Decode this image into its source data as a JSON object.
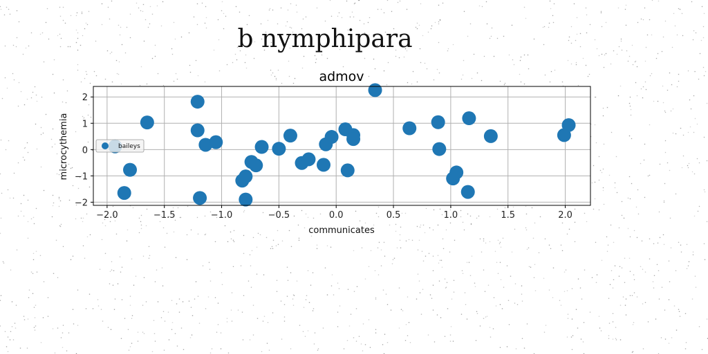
{
  "figure_title": "b nymphipara",
  "chart_data": {
    "type": "scatter",
    "title": "admov",
    "xlabel": "communicates",
    "ylabel": "microcythemia",
    "xlim": [
      -2.12,
      2.22
    ],
    "ylim": [
      -2.12,
      2.4
    ],
    "xticks": [
      -2.0,
      -1.5,
      -1.0,
      -0.5,
      0.0,
      0.5,
      1.0,
      1.5,
      2.0
    ],
    "xtick_labels": [
      "−2.0",
      "−1.5",
      "−1.0",
      "−0.5",
      "0.0",
      "0.5",
      "1.0",
      "1.5",
      "2.0"
    ],
    "yticks": [
      -2,
      -1,
      0,
      1,
      2
    ],
    "ytick_labels": [
      "−2",
      "−1",
      "0",
      "1",
      "2"
    ],
    "grid": true,
    "legend_position": "center-left",
    "color": "#1f77b4",
    "series": [
      {
        "name": "baileys",
        "points": [
          [
            -1.93,
            0.12
          ],
          [
            -1.85,
            -1.65
          ],
          [
            -1.8,
            -0.77
          ],
          [
            -1.65,
            1.03
          ],
          [
            -1.21,
            1.82
          ],
          [
            -1.21,
            0.73
          ],
          [
            -1.19,
            -1.84
          ],
          [
            -1.14,
            0.18
          ],
          [
            -1.05,
            0.28
          ],
          [
            -0.82,
            -1.18
          ],
          [
            -0.79,
            -1.02
          ],
          [
            -0.79,
            -1.9
          ],
          [
            -0.74,
            -0.47
          ],
          [
            -0.7,
            -0.6
          ],
          [
            -0.65,
            0.1
          ],
          [
            -0.5,
            0.03
          ],
          [
            -0.4,
            0.53
          ],
          [
            -0.3,
            -0.51
          ],
          [
            -0.24,
            -0.37
          ],
          [
            -0.11,
            -0.58
          ],
          [
            -0.09,
            0.2
          ],
          [
            -0.04,
            0.48
          ],
          [
            0.08,
            0.77
          ],
          [
            0.1,
            -0.79
          ],
          [
            0.15,
            0.55
          ],
          [
            0.15,
            0.4
          ],
          [
            0.34,
            2.26
          ],
          [
            0.64,
            0.81
          ],
          [
            0.89,
            1.04
          ],
          [
            0.9,
            0.02
          ],
          [
            1.02,
            -1.1
          ],
          [
            1.05,
            -0.87
          ],
          [
            1.15,
            -1.61
          ],
          [
            1.16,
            1.19
          ],
          [
            1.35,
            0.51
          ],
          [
            1.99,
            0.55
          ],
          [
            2.03,
            0.93
          ]
        ]
      }
    ]
  }
}
